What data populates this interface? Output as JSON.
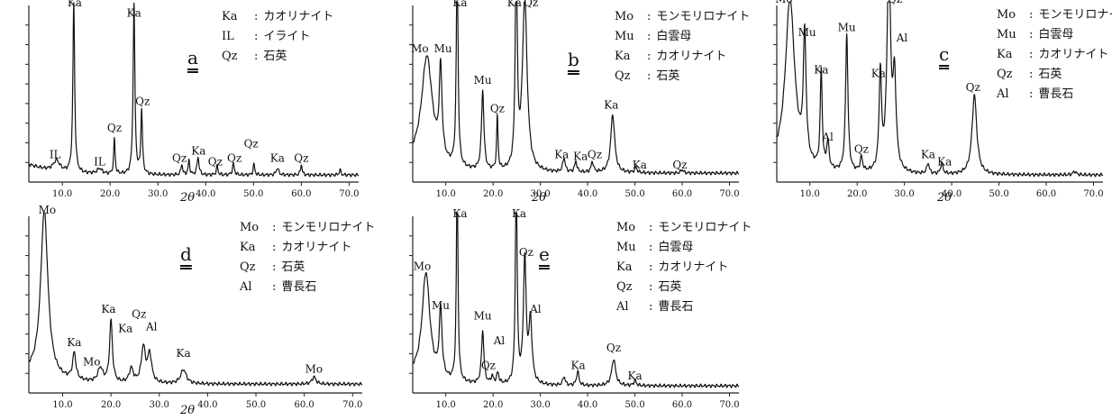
{
  "chart_data": [
    {
      "id": "a",
      "type": "line",
      "panel_label": "a",
      "xlabel": "2θ",
      "xlim": [
        3,
        72
      ],
      "x_ticks": [
        "10.0",
        "20.0",
        "30.0",
        "40.0",
        "50.0",
        "60.0",
        "70.0"
      ],
      "legend": [
        {
          "abbr": "Ka",
          "name": "カオリナイト"
        },
        {
          "abbr": "IL",
          "name": "イライト"
        },
        {
          "abbr": "Qz",
          "name": "石英"
        }
      ],
      "baseline": 0.04,
      "peaks": [
        {
          "x": 8.8,
          "h": 0.06,
          "w": 0.8
        },
        {
          "x": 12.4,
          "h": 0.96,
          "w": 0.22
        },
        {
          "x": 17.8,
          "h": 0.03,
          "w": 0.6
        },
        {
          "x": 20.9,
          "h": 0.2,
          "w": 0.18
        },
        {
          "x": 25.0,
          "h": 0.96,
          "w": 0.22
        },
        {
          "x": 26.6,
          "h": 0.36,
          "w": 0.2
        },
        {
          "x": 35.0,
          "h": 0.06,
          "w": 0.2
        },
        {
          "x": 36.5,
          "h": 0.08,
          "w": 0.2
        },
        {
          "x": 38.4,
          "h": 0.1,
          "w": 0.25
        },
        {
          "x": 42.4,
          "h": 0.05,
          "w": 0.2
        },
        {
          "x": 45.8,
          "h": 0.06,
          "w": 0.25
        },
        {
          "x": 50.1,
          "h": 0.06,
          "w": 0.2
        },
        {
          "x": 55.0,
          "h": 0.04,
          "w": 0.3
        },
        {
          "x": 60.0,
          "h": 0.06,
          "w": 0.2
        },
        {
          "x": 68.1,
          "h": 0.03,
          "w": 0.2
        }
      ],
      "annotations": [
        {
          "text": "IL",
          "x": 8.5,
          "y": 0.12
        },
        {
          "text": "Ka",
          "x": 12.6,
          "y": 0.98
        },
        {
          "text": "IL",
          "x": 17.8,
          "y": 0.08
        },
        {
          "text": "Qz",
          "x": 20.9,
          "y": 0.27
        },
        {
          "text": "Ka",
          "x": 25.0,
          "y": 0.92
        },
        {
          "text": "Qz",
          "x": 26.8,
          "y": 0.42
        },
        {
          "text": "Qz",
          "x": 34.5,
          "y": 0.1
        },
        {
          "text": "Ka",
          "x": 38.5,
          "y": 0.14
        },
        {
          "text": "Qz",
          "x": 42.0,
          "y": 0.08
        },
        {
          "text": "Qz",
          "x": 46.0,
          "y": 0.1
        },
        {
          "text": "Qz",
          "x": 49.5,
          "y": 0.18
        },
        {
          "text": "Ka",
          "x": 55.0,
          "y": 0.1
        },
        {
          "text": "Qz",
          "x": 60.0,
          "y": 0.1
        }
      ]
    },
    {
      "id": "b",
      "type": "line",
      "panel_label": "b",
      "xlabel": "2θ",
      "xlim": [
        3,
        72
      ],
      "x_ticks": [
        "10.0",
        "20.0",
        "30.0",
        "40.0",
        "50.0",
        "60.0",
        "70.0"
      ],
      "legend": [
        {
          "abbr": "Mo",
          "name": "モンモリロナイト"
        },
        {
          "abbr": "Mu",
          "name": "白雲母"
        },
        {
          "abbr": "Ka",
          "name": "カオリナイト"
        },
        {
          "abbr": "Qz",
          "name": "石英"
        }
      ],
      "baseline": 0.05,
      "peaks": [
        {
          "x": 6.0,
          "h": 0.62,
          "w": 1.4
        },
        {
          "x": 8.9,
          "h": 0.5,
          "w": 0.35
        },
        {
          "x": 12.4,
          "h": 1.2,
          "w": 0.22
        },
        {
          "x": 17.8,
          "h": 0.45,
          "w": 0.3
        },
        {
          "x": 20.9,
          "h": 0.3,
          "w": 0.18
        },
        {
          "x": 24.9,
          "h": 1.2,
          "w": 0.25
        },
        {
          "x": 26.7,
          "h": 0.97,
          "w": 0.6
        },
        {
          "x": 35.0,
          "h": 0.08,
          "w": 0.3
        },
        {
          "x": 37.5,
          "h": 0.06,
          "w": 0.3
        },
        {
          "x": 41.0,
          "h": 0.06,
          "w": 0.3
        },
        {
          "x": 45.3,
          "h": 0.33,
          "w": 0.5
        },
        {
          "x": 50.2,
          "h": 0.03,
          "w": 0.3
        },
        {
          "x": 60.0,
          "h": 0.02,
          "w": 0.3
        }
      ],
      "annotations": [
        {
          "text": "Mo",
          "x": 4.5,
          "y": 0.72
        },
        {
          "text": "Mu",
          "x": 9.4,
          "y": 0.72
        },
        {
          "text": "Ka",
          "x": 13.0,
          "y": 0.98
        },
        {
          "text": "Mu",
          "x": 17.8,
          "y": 0.54
        },
        {
          "text": "Qz",
          "x": 20.9,
          "y": 0.38
        },
        {
          "text": "Ka",
          "x": 24.5,
          "y": 0.98
        },
        {
          "text": "Qz",
          "x": 28.0,
          "y": 0.98
        },
        {
          "text": "Ka",
          "x": 34.5,
          "y": 0.12
        },
        {
          "text": "Ka",
          "x": 38.5,
          "y": 0.11
        },
        {
          "text": "Qz",
          "x": 41.5,
          "y": 0.12
        },
        {
          "text": "Ka",
          "x": 45.0,
          "y": 0.4
        },
        {
          "text": "Ka",
          "x": 51.0,
          "y": 0.06
        },
        {
          "text": "Qz",
          "x": 59.5,
          "y": 0.06
        }
      ]
    },
    {
      "id": "c",
      "type": "line",
      "panel_label": "c",
      "xlabel": "2θ",
      "xlim": [
        3,
        72
      ],
      "x_ticks": [
        "10.0",
        "20.0",
        "30.0",
        "40.0",
        "50.0",
        "60.0",
        "70.0"
      ],
      "legend": [
        {
          "abbr": "Mo",
          "name": "モンモリロナイト"
        },
        {
          "abbr": "Mu",
          "name": "白雲母"
        },
        {
          "abbr": "Ka",
          "name": "カオリナイト"
        },
        {
          "abbr": "Qz",
          "name": "石英"
        },
        {
          "abbr": "Al",
          "name": "曹長石"
        }
      ],
      "baseline": 0.04,
      "peaks": [
        {
          "x": 5.8,
          "h": 0.95,
          "w": 1.2
        },
        {
          "x": 8.9,
          "h": 0.7,
          "w": 0.35
        },
        {
          "x": 12.4,
          "h": 0.55,
          "w": 0.25
        },
        {
          "x": 13.8,
          "h": 0.15,
          "w": 0.3
        },
        {
          "x": 17.8,
          "h": 0.78,
          "w": 0.3
        },
        {
          "x": 20.9,
          "h": 0.08,
          "w": 0.3
        },
        {
          "x": 24.9,
          "h": 0.55,
          "w": 0.3
        },
        {
          "x": 26.7,
          "h": 1.2,
          "w": 0.45
        },
        {
          "x": 27.9,
          "h": 0.5,
          "w": 0.4
        },
        {
          "x": 35.0,
          "h": 0.06,
          "w": 0.3
        },
        {
          "x": 37.9,
          "h": 0.06,
          "w": 0.3
        },
        {
          "x": 44.8,
          "h": 0.45,
          "w": 0.6
        },
        {
          "x": 66.0,
          "h": 0.02,
          "w": 0.4
        }
      ],
      "annotations": [
        {
          "text": "Mo",
          "x": 4.5,
          "y": 1.0
        },
        {
          "text": "Mu",
          "x": 9.4,
          "y": 0.81
        },
        {
          "text": "Ka",
          "x": 12.4,
          "y": 0.6
        },
        {
          "text": "Al",
          "x": 13.8,
          "y": 0.22
        },
        {
          "text": "Mu",
          "x": 17.8,
          "y": 0.84
        },
        {
          "text": "Qz",
          "x": 20.9,
          "y": 0.15
        },
        {
          "text": "Ka",
          "x": 24.5,
          "y": 0.58
        },
        {
          "text": "Qz",
          "x": 28.0,
          "y": 1.0
        },
        {
          "text": "Al",
          "x": 29.5,
          "y": 0.78
        },
        {
          "text": "Ka",
          "x": 35.0,
          "y": 0.12
        },
        {
          "text": "Ka",
          "x": 38.5,
          "y": 0.08
        },
        {
          "text": "Qz",
          "x": 44.5,
          "y": 0.5
        }
      ]
    },
    {
      "id": "d",
      "type": "line",
      "panel_label": "d",
      "xlabel": "2θ",
      "xlim": [
        3,
        72
      ],
      "x_ticks": [
        "10.0",
        "20.0",
        "30.0",
        "40.0",
        "50.0",
        "60.0",
        "70.0"
      ],
      "legend": [
        {
          "abbr": "Mo",
          "name": "モンモリロナイト"
        },
        {
          "abbr": "Ka",
          "name": "カオリナイト"
        },
        {
          "abbr": "Qz",
          "name": "石英"
        },
        {
          "abbr": "Al",
          "name": "曹長石"
        }
      ],
      "baseline": 0.05,
      "peaks": [
        {
          "x": 6.2,
          "h": 0.95,
          "w": 0.9
        },
        {
          "x": 12.4,
          "h": 0.15,
          "w": 0.4
        },
        {
          "x": 17.8,
          "h": 0.08,
          "w": 0.6
        },
        {
          "x": 20.0,
          "h": 0.35,
          "w": 0.35
        },
        {
          "x": 24.2,
          "h": 0.08,
          "w": 0.5
        },
        {
          "x": 26.7,
          "h": 0.2,
          "w": 0.5
        },
        {
          "x": 28.0,
          "h": 0.16,
          "w": 0.5
        },
        {
          "x": 35.0,
          "h": 0.08,
          "w": 0.7
        },
        {
          "x": 62.0,
          "h": 0.04,
          "w": 0.5
        }
      ],
      "annotations": [
        {
          "text": "Mo",
          "x": 6.8,
          "y": 1.0
        },
        {
          "text": "Ka",
          "x": 12.4,
          "y": 0.25
        },
        {
          "text": "Mo",
          "x": 16.0,
          "y": 0.14
        },
        {
          "text": "Ka",
          "x": 19.5,
          "y": 0.44
        },
        {
          "text": "Ka",
          "x": 23.0,
          "y": 0.33
        },
        {
          "text": "Qz",
          "x": 25.8,
          "y": 0.41
        },
        {
          "text": "Al",
          "x": 28.4,
          "y": 0.34
        },
        {
          "text": "Ka",
          "x": 35.0,
          "y": 0.19
        },
        {
          "text": "Mo",
          "x": 62.0,
          "y": 0.1
        }
      ]
    },
    {
      "id": "e",
      "type": "line",
      "panel_label": "e",
      "xlabel": "",
      "xlim": [
        3,
        72
      ],
      "x_ticks": [
        "10.0",
        "20.0",
        "30.0",
        "40.0",
        "50.0",
        "60.0",
        "70.0"
      ],
      "legend": [
        {
          "abbr": "Mo",
          "name": "モンモリロナイト"
        },
        {
          "abbr": "Mu",
          "name": "白雲母"
        },
        {
          "abbr": "Ka",
          "name": "カオリナイト"
        },
        {
          "abbr": "Qz",
          "name": "石英"
        },
        {
          "abbr": "Al",
          "name": "曹長石"
        }
      ],
      "baseline": 0.04,
      "peaks": [
        {
          "x": 5.8,
          "h": 0.6,
          "w": 1.0
        },
        {
          "x": 8.9,
          "h": 0.38,
          "w": 0.35
        },
        {
          "x": 12.4,
          "h": 1.2,
          "w": 0.2
        },
        {
          "x": 17.8,
          "h": 0.3,
          "w": 0.3
        },
        {
          "x": 19.8,
          "h": 0.04,
          "w": 0.3
        },
        {
          "x": 21.0,
          "h": 0.06,
          "w": 0.3
        },
        {
          "x": 24.9,
          "h": 1.2,
          "w": 0.22
        },
        {
          "x": 26.7,
          "h": 0.7,
          "w": 0.35
        },
        {
          "x": 27.9,
          "h": 0.35,
          "w": 0.4
        },
        {
          "x": 35.0,
          "h": 0.05,
          "w": 0.3
        },
        {
          "x": 37.9,
          "h": 0.08,
          "w": 0.3
        },
        {
          "x": 45.5,
          "h": 0.15,
          "w": 0.5
        },
        {
          "x": 50.0,
          "h": 0.03,
          "w": 0.3
        }
      ],
      "annotations": [
        {
          "text": "Mo",
          "x": 5.0,
          "y": 0.68
        },
        {
          "text": "Mu",
          "x": 8.9,
          "y": 0.46
        },
        {
          "text": "Ka",
          "x": 13.0,
          "y": 0.98
        },
        {
          "text": "Mu",
          "x": 17.8,
          "y": 0.4
        },
        {
          "text": "Qz",
          "x": 19.0,
          "y": 0.12
        },
        {
          "text": "Al",
          "x": 21.3,
          "y": 0.26
        },
        {
          "text": "Ka",
          "x": 25.5,
          "y": 0.98
        },
        {
          "text": "Qz",
          "x": 27.0,
          "y": 0.76
        },
        {
          "text": "Al",
          "x": 29.0,
          "y": 0.44
        },
        {
          "text": "Ka",
          "x": 38.0,
          "y": 0.12
        },
        {
          "text": "Qz",
          "x": 45.5,
          "y": 0.22
        },
        {
          "text": "Ka",
          "x": 50.0,
          "y": 0.06
        }
      ]
    }
  ]
}
